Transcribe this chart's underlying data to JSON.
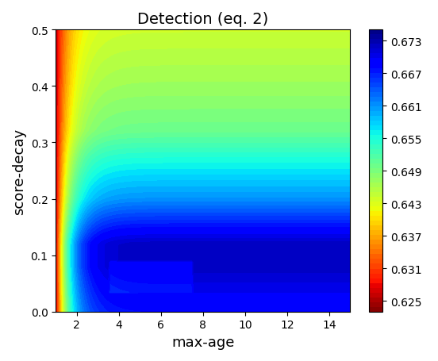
{
  "title": "Detection (eq. 2)",
  "xlabel": "max-age",
  "ylabel": "score-decay",
  "xlim": [
    1,
    15
  ],
  "ylim": [
    0.0,
    0.5
  ],
  "xticks": [
    2,
    4,
    6,
    8,
    10,
    12,
    14
  ],
  "yticks": [
    0.0,
    0.1,
    0.2,
    0.3,
    0.4,
    0.5
  ],
  "cbar_ticks": [
    0.625,
    0.631,
    0.637,
    0.643,
    0.649,
    0.655,
    0.661,
    0.667,
    0.673
  ],
  "vmin": 0.623,
  "vmax": 0.675,
  "colormap": "jet_r",
  "figsize": [
    5.52,
    4.56
  ],
  "dpi": 100
}
